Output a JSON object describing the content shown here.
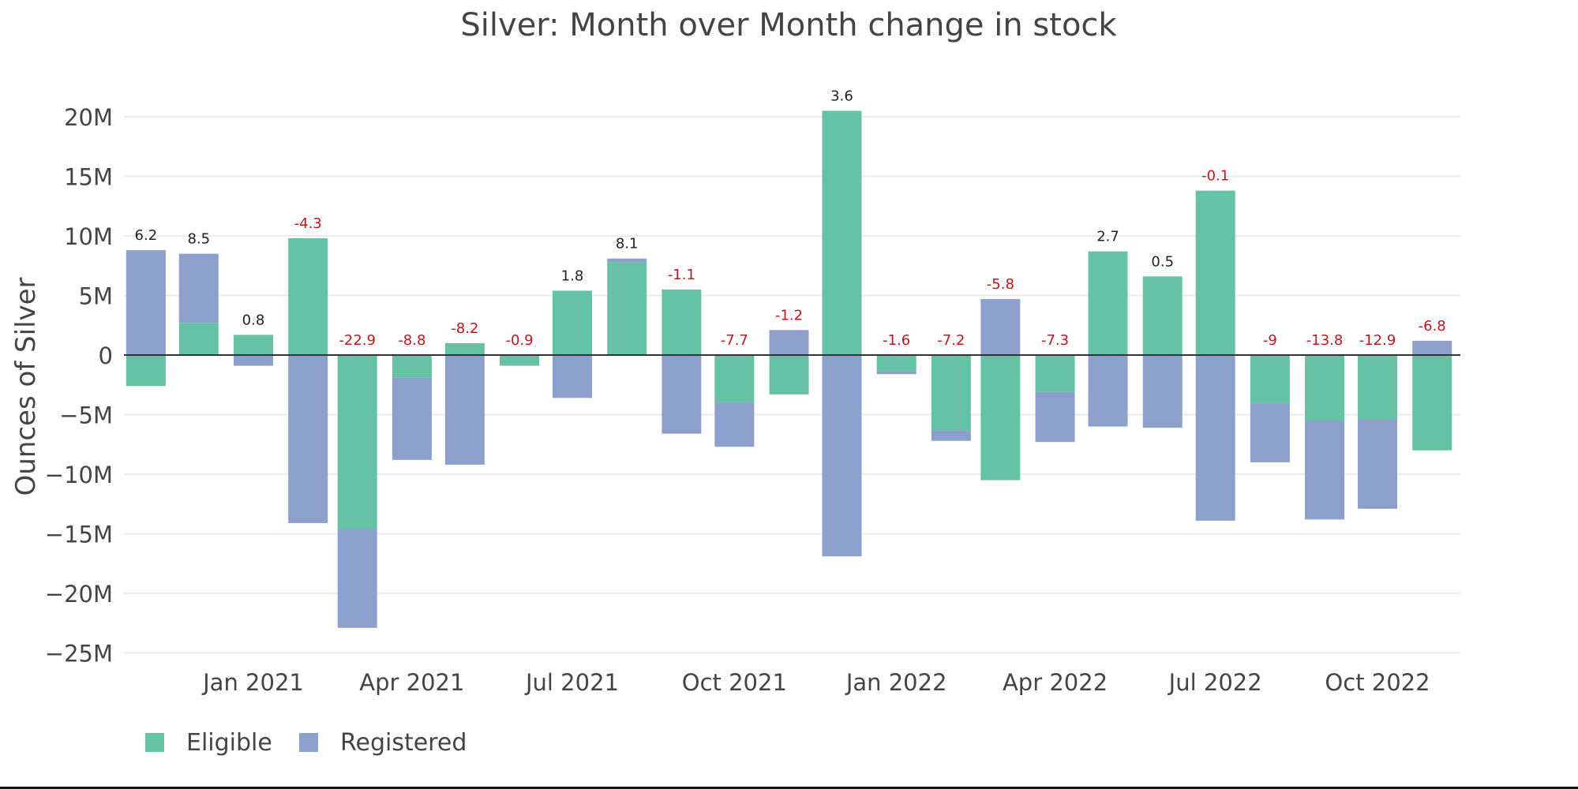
{
  "chart_data": {
    "type": "bar",
    "barmode": "relative",
    "title": "Silver: Month over Month change in stock",
    "xlabel": "",
    "ylabel": "Ounces of Silver",
    "ylim": [
      -25000000,
      20000000
    ],
    "yticks": [
      {
        "value": 20000000,
        "label": "20M"
      },
      {
        "value": 15000000,
        "label": "15M"
      },
      {
        "value": 10000000,
        "label": "10M"
      },
      {
        "value": 5000000,
        "label": "5M"
      },
      {
        "value": 0,
        "label": "0"
      },
      {
        "value": -5000000,
        "label": "−5M"
      },
      {
        "value": -10000000,
        "label": "−10M"
      },
      {
        "value": -15000000,
        "label": "−15M"
      },
      {
        "value": -20000000,
        "label": "−20M"
      },
      {
        "value": -25000000,
        "label": "−25M"
      }
    ],
    "xticks": [
      {
        "date": "2021-01-01",
        "label": "Jan 2021"
      },
      {
        "date": "2021-04-01",
        "label": "Apr 2021"
      },
      {
        "date": "2021-07-01",
        "label": "Jul 2021"
      },
      {
        "date": "2021-10-01",
        "label": "Oct 2021"
      },
      {
        "date": "2022-01-01",
        "label": "Jan 2022"
      },
      {
        "date": "2022-04-01",
        "label": "Apr 2022"
      },
      {
        "date": "2022-07-01",
        "label": "Jul 2022"
      },
      {
        "date": "2022-10-01",
        "label": "Oct 2022"
      }
    ],
    "xlim": [
      "2020-10-10",
      "2022-11-25"
    ],
    "grid": true,
    "legend_position": "bottom-left",
    "x": [
      "2020-11-01",
      "2020-12-01",
      "2021-01-01",
      "2021-02-01",
      "2021-03-01",
      "2021-04-01",
      "2021-05-01",
      "2021-06-01",
      "2021-07-01",
      "2021-08-01",
      "2021-09-01",
      "2021-10-01",
      "2021-11-01",
      "2021-12-01",
      "2022-01-01",
      "2022-02-01",
      "2022-03-01",
      "2022-04-01",
      "2022-05-01",
      "2022-06-01",
      "2022-07-01",
      "2022-08-01",
      "2022-09-01",
      "2022-10-01",
      "2022-11-01"
    ],
    "series": [
      {
        "name": "Eligible",
        "color": "#66c2a5",
        "values": [
          -2.6,
          2.7,
          1.7,
          9.8,
          -14.6,
          -1.9,
          1.0,
          -0.9,
          5.4,
          7.8,
          5.5,
          -4.0,
          -3.3,
          20.5,
          -1.35,
          -6.3,
          -10.5,
          -3.1,
          8.7,
          6.6,
          13.8,
          -4.1,
          -5.5,
          -5.4,
          -8.0
        ],
        "unit": "M oz"
      },
      {
        "name": "Registered",
        "color": "#8da0cb",
        "values": [
          8.8,
          5.8,
          -0.9,
          -14.1,
          -8.3,
          -6.9,
          -9.2,
          0.0,
          -3.6,
          0.3,
          -6.6,
          -3.7,
          2.1,
          -16.9,
          -0.25,
          -0.9,
          4.7,
          -4.2,
          -6.0,
          -6.1,
          -13.9,
          -4.9,
          -8.3,
          -7.5,
          1.2
        ],
        "unit": "M oz"
      }
    ],
    "annotations": {
      "labels": [
        "6.2",
        "8.5",
        "0.8",
        "-4.3",
        "-22.9",
        "-8.8",
        "-8.2",
        "-0.9",
        "1.8",
        "8.1",
        "-1.1",
        "-7.7",
        "-1.2",
        "3.6",
        "-1.6",
        "-7.2",
        "-5.8",
        "-7.3",
        "2.7",
        "0.5",
        "-0.1",
        "-9",
        "-13.8",
        "-12.9",
        "-6.8"
      ],
      "positive_color": "#222222",
      "negative_color": "#c0161c"
    }
  }
}
